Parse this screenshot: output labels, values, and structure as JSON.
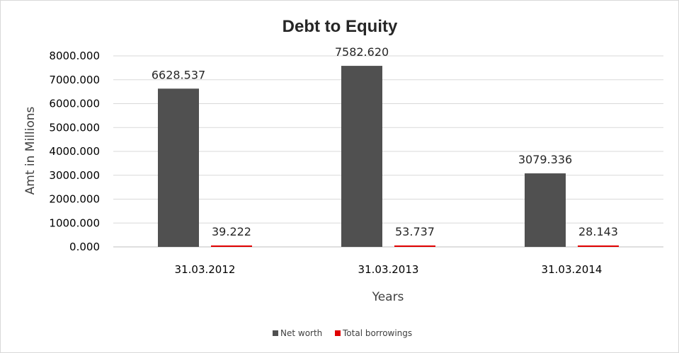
{
  "chart_data": {
    "type": "bar",
    "title": "Debt to Equity",
    "xlabel": "Years",
    "ylabel": "Amt in Millions",
    "categories": [
      "31.03.2012",
      "31.03.2013",
      "31.03.2014"
    ],
    "series": [
      {
        "name": "Net worth",
        "color": "#505050",
        "values": [
          6628.537,
          7582.62,
          3079.336
        ],
        "labels": [
          "6628.537",
          "7582.620",
          "3079.336"
        ]
      },
      {
        "name": "Total borrowings",
        "color": "#e00000",
        "values": [
          39.222,
          53.737,
          28.143
        ],
        "labels": [
          "39.222",
          "53.737",
          "28.143"
        ]
      }
    ],
    "ylim": [
      0,
      8000
    ],
    "yticks": [
      "0.000",
      "1000.000",
      "2000.000",
      "3000.000",
      "4000.000",
      "5000.000",
      "6000.000",
      "7000.000",
      "8000.000"
    ],
    "grid": true,
    "legend_position": "bottom"
  }
}
